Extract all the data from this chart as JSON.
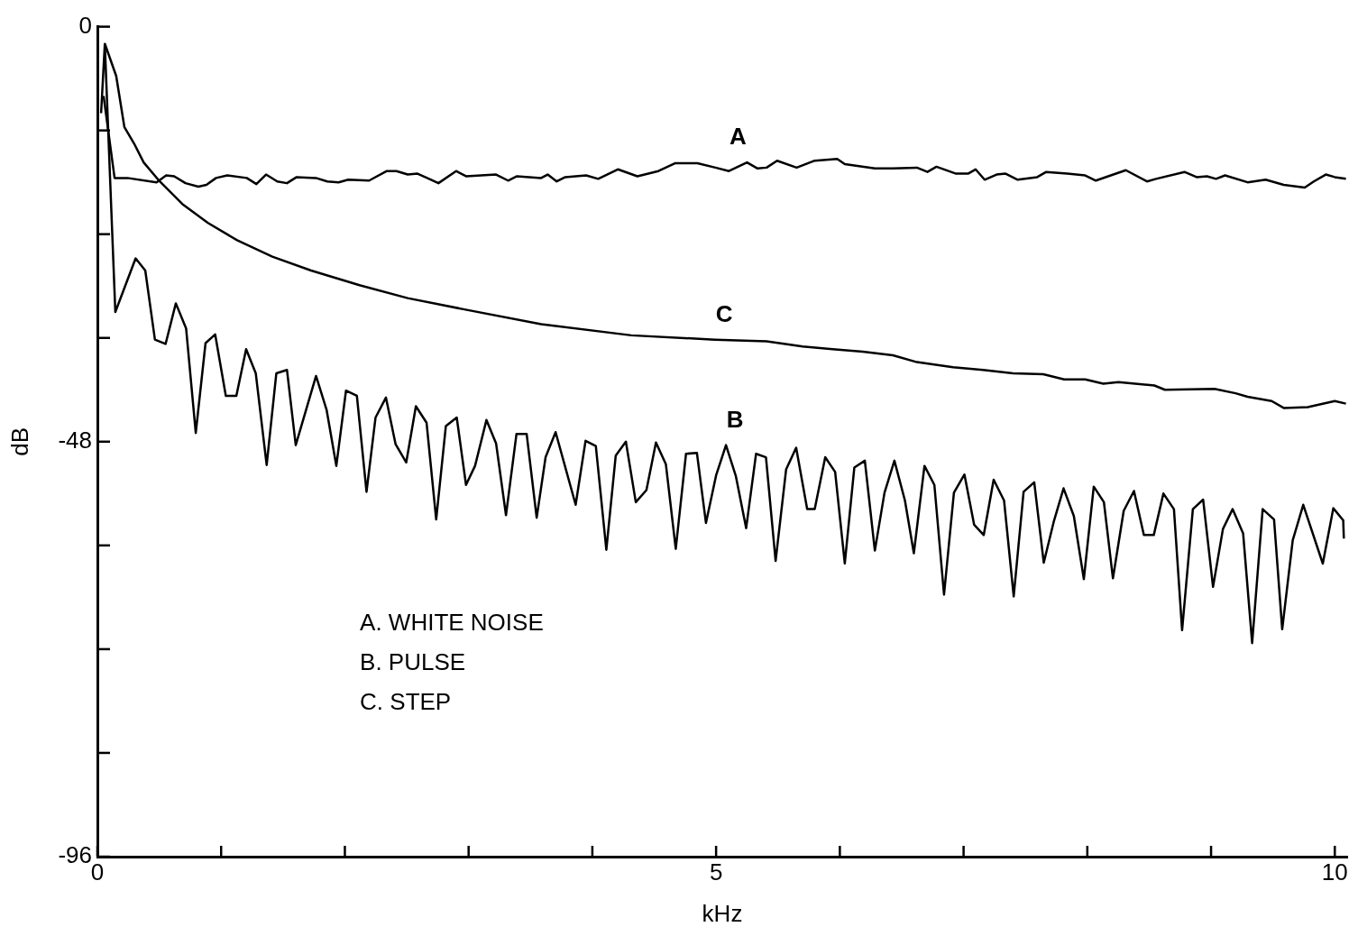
{
  "chart_data": {
    "type": "line",
    "xlabel": "kHz",
    "ylabel": "dB",
    "xlim": [
      0,
      10.1
    ],
    "ylim": [
      -96,
      0
    ],
    "xticks": [
      0,
      {
        "value": 1,
        "label": null
      },
      {
        "value": 2,
        "label": null
      },
      {
        "value": 3,
        "label": null
      },
      {
        "value": 4,
        "label": null
      },
      5,
      {
        "value": 6,
        "label": null
      },
      {
        "value": 7,
        "label": null
      },
      {
        "value": 8,
        "label": null
      },
      {
        "value": 9,
        "label": null
      },
      10
    ],
    "yticks": [
      0,
      {
        "value": -12,
        "label": null
      },
      {
        "value": -24,
        "label": null
      },
      {
        "value": -36,
        "label": null
      },
      -48,
      {
        "value": -60,
        "label": null
      },
      {
        "value": -72,
        "label": null
      },
      {
        "value": -84,
        "label": null
      },
      -96
    ],
    "grid": false,
    "legend": false,
    "annotations": [
      "A. WHITE NOISE",
      "B. PULSE",
      "C. STEP"
    ],
    "series": [
      {
        "name": "A",
        "color": "#000000",
        "x": [
          0.05,
          0.139,
          0.243,
          0.478,
          0.556,
          0.621,
          0.712,
          0.816,
          0.881,
          0.959,
          1.05,
          1.207,
          1.285,
          1.363,
          1.454,
          1.532,
          1.61,
          1.767,
          1.858,
          1.949,
          2.027,
          2.196,
          2.339,
          2.417,
          2.508,
          2.587,
          2.665,
          2.756,
          2.899,
          2.979,
          3.222,
          3.319,
          3.391,
          3.586,
          3.639,
          3.712,
          3.781,
          3.95,
          4.047,
          4.206,
          4.364,
          4.534,
          4.667,
          4.849,
          4.995,
          5.104,
          5.25,
          5.335,
          5.408,
          5.493,
          5.651,
          5.797,
          5.979,
          6.04,
          6.283,
          6.429,
          6.623,
          6.708,
          6.781,
          6.939,
          7.036,
          7.097,
          7.17,
          7.267,
          7.34,
          7.437,
          7.595,
          7.668,
          7.838,
          7.983,
          8.069,
          8.311,
          8.482,
          8.555,
          8.785,
          8.883,
          8.967,
          9.04,
          9.113,
          9.295,
          9.441,
          9.587,
          9.757,
          9.83,
          9.927,
          10.0,
          10.09
        ],
        "values": [
          -8,
          -17.5,
          -17.5,
          -18.0,
          -17.2,
          -17.3,
          -18.1,
          -18.5,
          -18.3,
          -17.5,
          -17.2,
          -17.5,
          -18.2,
          -17.1,
          -17.9,
          -18.1,
          -17.4,
          -17.5,
          -17.9,
          -18.0,
          -17.7,
          -17.8,
          -16.7,
          -16.7,
          -17.1,
          -17.0,
          -17.5,
          -18.1,
          -16.7,
          -17.3,
          -17.1,
          -17.8,
          -17.3,
          -17.5,
          -17.1,
          -17.9,
          -17.4,
          -17.2,
          -17.6,
          -16.5,
          -17.3,
          -16.7,
          -15.8,
          -15.8,
          -16.3,
          -16.7,
          -15.7,
          -16.4,
          -16.3,
          -15.5,
          -16.3,
          -15.5,
          -15.3,
          -15.9,
          -16.4,
          -16.4,
          -16.3,
          -16.8,
          -16.2,
          -17.0,
          -17.0,
          -16.5,
          -17.7,
          -17.1,
          -17.0,
          -17.7,
          -17.4,
          -16.8,
          -17.0,
          -17.2,
          -17.8,
          -16.6,
          -17.9,
          -17.6,
          -16.8,
          -17.4,
          -17.3,
          -17.6,
          -17.2,
          -18.0,
          -17.7,
          -18.3,
          -18.6,
          -17.9,
          -17.1,
          -17.4,
          -17.6
        ]
      },
      {
        "name": "B",
        "color": "#000000",
        "x": [
          0.03,
          0.06,
          0.145,
          0.309,
          0.387,
          0.465,
          0.551,
          0.634,
          0.717,
          0.795,
          0.874,
          0.952,
          1.038,
          1.123,
          1.202,
          1.28,
          1.368,
          1.446,
          1.532,
          1.603,
          1.767,
          1.852,
          1.931,
          2.009,
          2.097,
          2.175,
          2.248,
          2.332,
          2.41,
          2.496,
          2.574,
          2.66,
          2.738,
          2.816,
          2.904,
          2.979,
          3.052,
          3.144,
          3.222,
          3.302,
          3.387,
          3.469,
          3.55,
          3.622,
          3.703,
          3.865,
          3.945,
          4.028,
          4.113,
          4.189,
          4.271,
          4.351,
          4.437,
          4.514,
          4.594,
          4.674,
          4.757,
          4.845,
          4.918,
          5.0,
          5.08,
          5.16,
          5.243,
          5.323,
          5.403,
          5.481,
          5.566,
          5.647,
          5.736,
          5.797,
          5.882,
          5.962,
          6.04,
          6.117,
          6.202,
          6.283,
          6.361,
          6.441,
          6.526,
          6.598,
          6.684,
          6.764,
          6.842,
          6.922,
          7.007,
          7.085,
          7.163,
          7.243,
          7.327,
          7.405,
          7.485,
          7.571,
          7.648,
          7.728,
          7.808,
          7.891,
          7.972,
          8.052,
          8.134,
          8.207,
          8.294,
          8.377,
          8.457,
          8.537,
          8.615,
          8.7,
          8.766,
          8.853,
          8.936,
          9.016,
          9.096,
          9.174,
          9.259,
          9.332,
          9.417,
          9.509,
          9.575,
          9.66,
          9.745,
          9.903,
          9.988,
          10.068,
          10.073
        ],
        "values": [
          -10,
          -2,
          -33.0,
          -26.8,
          -28.2,
          -36.2,
          -36.7,
          -32.0,
          -34.9,
          -47.0,
          -36.6,
          -35.6,
          -42.7,
          -42.7,
          -37.3,
          -40.1,
          -50.7,
          -40.1,
          -39.7,
          -48.4,
          -40.4,
          -44.3,
          -50.8,
          -42.1,
          -42.7,
          -53.8,
          -45.2,
          -42.9,
          -48.3,
          -50.4,
          -43.9,
          -45.8,
          -57.0,
          -46.2,
          -45.2,
          -53.0,
          -50.8,
          -45.5,
          -48.2,
          -56.5,
          -47.1,
          -47.1,
          -56.8,
          -49.8,
          -46.9,
          -55.3,
          -47.9,
          -48.5,
          -60.5,
          -49.6,
          -48.0,
          -55.0,
          -53.6,
          -48.1,
          -50.6,
          -60.4,
          -49.4,
          -49.3,
          -57.4,
          -51.9,
          -48.4,
          -52.0,
          -58.0,
          -49.4,
          -49.8,
          -61.8,
          -51.2,
          -48.7,
          -55.8,
          -55.8,
          -49.8,
          -51.5,
          -62.1,
          -51.0,
          -50.2,
          -60.6,
          -53.9,
          -50.2,
          -54.8,
          -60.9,
          -50.8,
          -53.0,
          -65.7,
          -53.9,
          -51.8,
          -57.6,
          -58.8,
          -52.4,
          -54.8,
          -65.9,
          -53.8,
          -52.7,
          -62.0,
          -57.3,
          -53.4,
          -56.6,
          -63.9,
          -53.2,
          -55.0,
          -63.8,
          -56.0,
          -53.7,
          -58.8,
          -58.8,
          -54.0,
          -55.8,
          -69.8,
          -55.8,
          -54.7,
          -64.8,
          -58.1,
          -55.8,
          -58.6,
          -71.3,
          -55.8,
          -57.0,
          -69.7,
          -59.4,
          -55.3,
          -62.1,
          -55.7,
          -57.1,
          -59.2
        ]
      },
      {
        "name": "C",
        "color": "#000000",
        "x": [
          0.061,
          0.152,
          0.218,
          0.296,
          0.374,
          0.504,
          0.686,
          0.894,
          1.129,
          1.414,
          1.727,
          2.118,
          2.508,
          2.966,
          3.586,
          4.315,
          4.993,
          5.408,
          5.7,
          5.942,
          6.186,
          6.429,
          6.623,
          6.915,
          7.157,
          7.4,
          7.644,
          7.813,
          7.983,
          8.129,
          8.251,
          8.542,
          8.627,
          9.028,
          9.198,
          9.295,
          9.49,
          9.587,
          9.781,
          10.0,
          10.09
        ],
        "values": [
          -2.0,
          -5.7,
          -11.6,
          -13.5,
          -15.7,
          -17.9,
          -20.5,
          -22.7,
          -24.7,
          -26.6,
          -28.2,
          -29.9,
          -31.4,
          -32.7,
          -34.4,
          -35.7,
          -36.2,
          -36.4,
          -37.0,
          -37.3,
          -37.6,
          -38.0,
          -38.8,
          -39.4,
          -39.7,
          -40.1,
          -40.2,
          -40.8,
          -40.8,
          -41.3,
          -41.1,
          -41.5,
          -42.0,
          -41.9,
          -42.4,
          -42.8,
          -43.3,
          -44.1,
          -44.0,
          -43.3,
          -43.6
        ]
      }
    ]
  }
}
